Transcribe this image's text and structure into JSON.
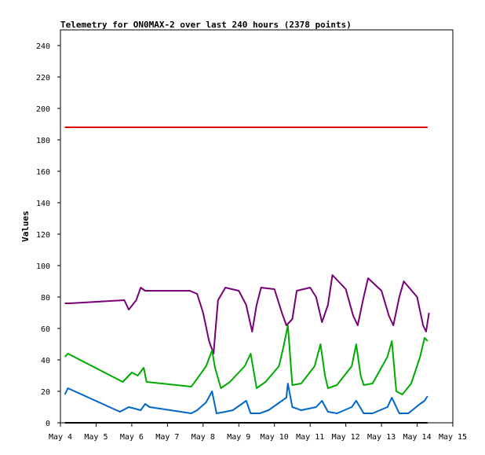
{
  "chart_data": {
    "type": "line",
    "title": "Telemetry for ON0MAX-2 over last 240 hours (2378 points)",
    "xlabel": "",
    "ylabel": "Values",
    "ylim": [
      0,
      250
    ],
    "xlim": [
      "2024-05-04",
      "2024-05-15"
    ],
    "x_ticks": [
      "May 4",
      "May 5",
      "May 6",
      "May 7",
      "May 8",
      "May 9",
      "May 10",
      "May 11",
      "May 12",
      "May 13",
      "May 14",
      "May 15"
    ],
    "y_ticks": [
      0,
      20,
      40,
      60,
      80,
      100,
      120,
      140,
      160,
      180,
      200,
      220,
      240
    ],
    "grid": false,
    "legend": "none",
    "series": [
      {
        "color": "#dd0000",
        "points": [
          [
            "2024-05-04 03:00",
            188
          ],
          [
            "2024-05-14 07:00",
            188
          ]
        ]
      },
      {
        "color": "#770077",
        "points": [
          [
            "2024-05-04 03:00",
            76
          ],
          [
            "2024-05-04 06:00",
            76
          ],
          [
            "2024-05-05 19:00",
            78
          ],
          [
            "2024-05-05 22:00",
            72
          ],
          [
            "2024-05-06 03:00",
            78
          ],
          [
            "2024-05-06 06:00",
            86
          ],
          [
            "2024-05-06 09:00",
            84
          ],
          [
            "2024-05-07 15:00",
            84
          ],
          [
            "2024-05-07 20:00",
            82
          ],
          [
            "2024-05-08 00:00",
            70
          ],
          [
            "2024-05-08 04:00",
            52
          ],
          [
            "2024-05-08 07:00",
            44
          ],
          [
            "2024-05-08 10:00",
            78
          ],
          [
            "2024-05-08 15:00",
            86
          ],
          [
            "2024-05-09 00:00",
            84
          ],
          [
            "2024-05-09 05:00",
            75
          ],
          [
            "2024-05-09 09:00",
            58
          ],
          [
            "2024-05-09 12:00",
            75
          ],
          [
            "2024-05-09 15:00",
            86
          ],
          [
            "2024-05-10 00:00",
            85
          ],
          [
            "2024-05-10 05:00",
            70
          ],
          [
            "2024-05-10 08:00",
            62
          ],
          [
            "2024-05-10 12:00",
            66
          ],
          [
            "2024-05-10 15:00",
            84
          ],
          [
            "2024-05-11 00:00",
            86
          ],
          [
            "2024-05-11 04:00",
            80
          ],
          [
            "2024-05-11 08:00",
            64
          ],
          [
            "2024-05-11 12:00",
            75
          ],
          [
            "2024-05-11 15:00",
            94
          ],
          [
            "2024-05-12 00:00",
            85
          ],
          [
            "2024-05-12 05:00",
            68
          ],
          [
            "2024-05-12 08:00",
            62
          ],
          [
            "2024-05-12 12:00",
            80
          ],
          [
            "2024-05-12 15:00",
            92
          ],
          [
            "2024-05-13 00:00",
            84
          ],
          [
            "2024-05-13 05:00",
            68
          ],
          [
            "2024-05-13 08:00",
            62
          ],
          [
            "2024-05-13 12:00",
            80
          ],
          [
            "2024-05-13 15:00",
            90
          ],
          [
            "2024-05-14 00:00",
            80
          ],
          [
            "2024-05-14 04:00",
            62
          ],
          [
            "2024-05-14 06:00",
            58
          ],
          [
            "2024-05-14 08:00",
            70
          ]
        ]
      },
      {
        "color": "#00aa00",
        "points": [
          [
            "2024-05-04 03:00",
            42
          ],
          [
            "2024-05-04 05:00",
            44
          ],
          [
            "2024-05-05 18:00",
            26
          ],
          [
            "2024-05-06 00:00",
            32
          ],
          [
            "2024-05-06 04:00",
            30
          ],
          [
            "2024-05-06 08:00",
            35
          ],
          [
            "2024-05-06 10:00",
            26
          ],
          [
            "2024-05-07 16:00",
            23
          ],
          [
            "2024-05-07 20:00",
            28
          ],
          [
            "2024-05-08 02:00",
            36
          ],
          [
            "2024-05-08 06:00",
            46
          ],
          [
            "2024-05-08 08:00",
            35
          ],
          [
            "2024-05-08 12:00",
            22
          ],
          [
            "2024-05-08 18:00",
            26
          ],
          [
            "2024-05-09 04:00",
            36
          ],
          [
            "2024-05-09 08:00",
            44
          ],
          [
            "2024-05-09 12:00",
            22
          ],
          [
            "2024-05-09 18:00",
            26
          ],
          [
            "2024-05-10 03:00",
            36
          ],
          [
            "2024-05-10 06:00",
            48
          ],
          [
            "2024-05-10 09:00",
            62
          ],
          [
            "2024-05-10 12:00",
            24
          ],
          [
            "2024-05-10 18:00",
            25
          ],
          [
            "2024-05-11 03:00",
            36
          ],
          [
            "2024-05-11 07:00",
            50
          ],
          [
            "2024-05-11 10:00",
            30
          ],
          [
            "2024-05-11 12:00",
            22
          ],
          [
            "2024-05-11 18:00",
            24
          ],
          [
            "2024-05-12 04:00",
            36
          ],
          [
            "2024-05-12 07:00",
            50
          ],
          [
            "2024-05-12 10:00",
            30
          ],
          [
            "2024-05-12 12:00",
            24
          ],
          [
            "2024-05-12 18:00",
            25
          ],
          [
            "2024-05-13 04:00",
            42
          ],
          [
            "2024-05-13 07:00",
            52
          ],
          [
            "2024-05-13 10:00",
            20
          ],
          [
            "2024-05-13 14:00",
            18
          ],
          [
            "2024-05-13 20:00",
            25
          ],
          [
            "2024-05-14 02:00",
            42
          ],
          [
            "2024-05-14 05:00",
            54
          ],
          [
            "2024-05-14 07:00",
            52
          ]
        ]
      },
      {
        "color": "#0066cc",
        "points": [
          [
            "2024-05-04 03:00",
            18
          ],
          [
            "2024-05-04 05:00",
            22
          ],
          [
            "2024-05-05 16:00",
            7
          ],
          [
            "2024-05-05 22:00",
            10
          ],
          [
            "2024-05-06 06:00",
            8
          ],
          [
            "2024-05-06 09:00",
            12
          ],
          [
            "2024-05-06 12:00",
            10
          ],
          [
            "2024-05-07 16:00",
            6
          ],
          [
            "2024-05-07 20:00",
            8
          ],
          [
            "2024-05-08 02:00",
            13
          ],
          [
            "2024-05-08 06:00",
            20
          ],
          [
            "2024-05-08 09:00",
            6
          ],
          [
            "2024-05-08 15:00",
            7
          ],
          [
            "2024-05-08 20:00",
            8
          ],
          [
            "2024-05-09 05:00",
            14
          ],
          [
            "2024-05-09 08:00",
            6
          ],
          [
            "2024-05-09 14:00",
            6
          ],
          [
            "2024-05-09 20:00",
            8
          ],
          [
            "2024-05-10 02:00",
            12
          ],
          [
            "2024-05-10 08:00",
            16
          ],
          [
            "2024-05-10 09:00",
            25
          ],
          [
            "2024-05-10 12:00",
            10
          ],
          [
            "2024-05-10 18:00",
            8
          ],
          [
            "2024-05-11 04:00",
            10
          ],
          [
            "2024-05-11 08:00",
            14
          ],
          [
            "2024-05-11 12:00",
            7
          ],
          [
            "2024-05-11 18:00",
            6
          ],
          [
            "2024-05-12 04:00",
            10
          ],
          [
            "2024-05-12 07:00",
            14
          ],
          [
            "2024-05-12 12:00",
            6
          ],
          [
            "2024-05-12 18:00",
            6
          ],
          [
            "2024-05-13 04:00",
            10
          ],
          [
            "2024-05-13 07:00",
            16
          ],
          [
            "2024-05-13 12:00",
            6
          ],
          [
            "2024-05-13 18:00",
            6
          ],
          [
            "2024-05-14 02:00",
            12
          ],
          [
            "2024-05-14 05:00",
            14
          ],
          [
            "2024-05-14 07:00",
            17
          ]
        ]
      },
      {
        "color": "#000000",
        "points": [
          [
            "2024-05-04 03:00",
            0
          ],
          [
            "2024-05-14 07:00",
            0
          ]
        ]
      }
    ]
  }
}
